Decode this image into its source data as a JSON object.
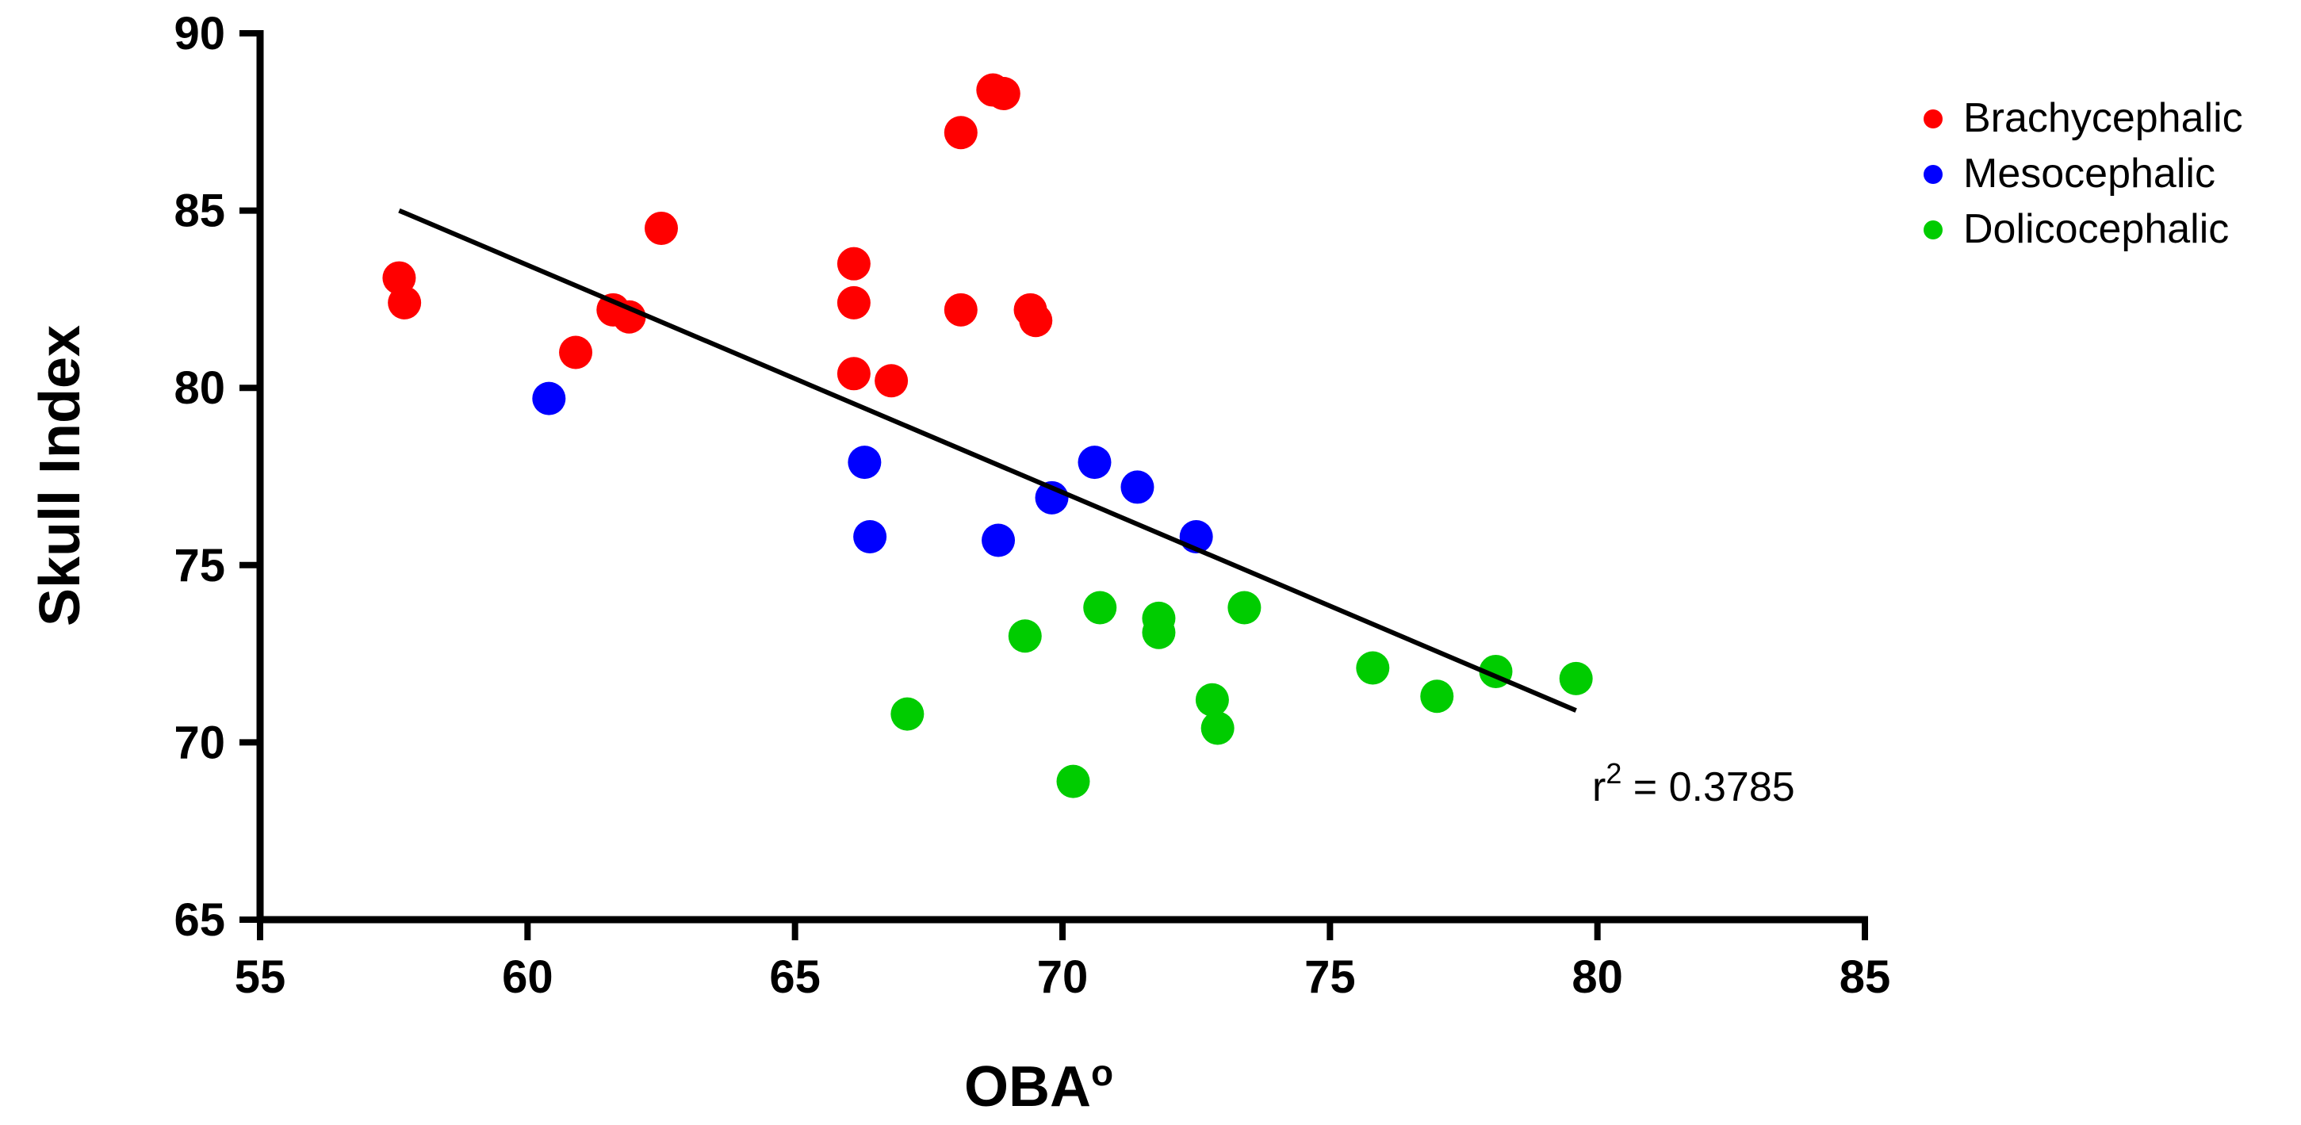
{
  "chart_data": {
    "type": "scatter",
    "title": "",
    "xlabel": "OBA",
    "xlabel_suffix": "o",
    "ylabel": "Skull Index",
    "xlim": [
      55,
      85
    ],
    "ylim": [
      65,
      90
    ],
    "xticks": [
      55,
      60,
      65,
      70,
      75,
      80,
      85
    ],
    "yticks": [
      65,
      70,
      75,
      80,
      85,
      90
    ],
    "grid": false,
    "legend_position": "top-right",
    "series": [
      {
        "name": "Brachycephalic",
        "color": "#ff0000",
        "points": [
          [
            57.6,
            83.1
          ],
          [
            57.7,
            82.4
          ],
          [
            60.9,
            81.0
          ],
          [
            61.6,
            82.2
          ],
          [
            61.9,
            82.0
          ],
          [
            62.5,
            84.5
          ],
          [
            66.1,
            83.5
          ],
          [
            66.1,
            82.4
          ],
          [
            66.1,
            80.4
          ],
          [
            66.8,
            80.2
          ],
          [
            68.1,
            87.2
          ],
          [
            68.1,
            82.2
          ],
          [
            68.7,
            88.4
          ],
          [
            68.9,
            88.3
          ],
          [
            69.4,
            82.2
          ],
          [
            69.5,
            81.9
          ]
        ]
      },
      {
        "name": "Mesocephalic",
        "color": "#0000ff",
        "points": [
          [
            60.4,
            79.7
          ],
          [
            66.3,
            77.9
          ],
          [
            66.4,
            75.8
          ],
          [
            68.8,
            75.7
          ],
          [
            69.8,
            76.9
          ],
          [
            70.6,
            77.9
          ],
          [
            71.4,
            77.2
          ],
          [
            72.5,
            75.8
          ]
        ]
      },
      {
        "name": "Dolicocephalic",
        "color": "#00cc00",
        "points": [
          [
            67.1,
            70.8
          ],
          [
            69.3,
            73.0
          ],
          [
            70.2,
            68.9
          ],
          [
            70.7,
            73.8
          ],
          [
            71.8,
            73.5
          ],
          [
            71.8,
            73.1
          ],
          [
            72.8,
            71.2
          ],
          [
            72.9,
            70.4
          ],
          [
            73.4,
            73.8
          ],
          [
            75.8,
            72.1
          ],
          [
            77.0,
            71.3
          ],
          [
            78.1,
            72.0
          ],
          [
            79.6,
            71.8
          ]
        ]
      }
    ],
    "regression_line": {
      "x": [
        57.6,
        79.6
      ],
      "y": [
        85.0,
        70.9
      ]
    },
    "annotation": {
      "base": "r",
      "superscript": "2",
      "text": " = 0.3785"
    }
  }
}
